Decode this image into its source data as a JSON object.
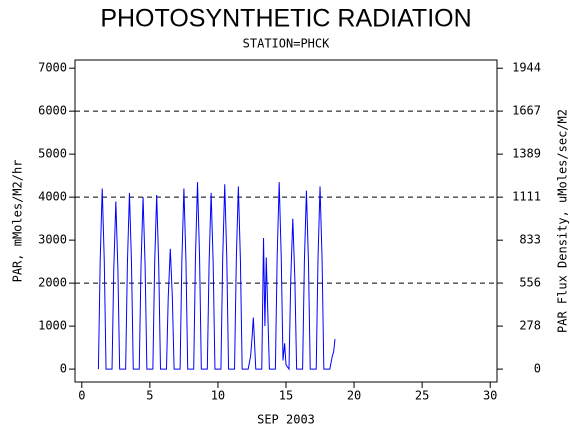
{
  "chart_data": {
    "type": "line",
    "title": "PHOTOSYNTHETIC RADIATION",
    "subtitle": "STATION=PHCK",
    "x_label": "SEP 2003",
    "y_label": "PAR, mMoles/M2/hr",
    "y2_label": "PAR Flux Density, uMoles/sec/M2",
    "xlim": [
      -0.5,
      30.5
    ],
    "xticks": [
      0,
      5,
      10,
      15,
      20,
      25,
      30
    ],
    "ylim": [
      -300,
      7190
    ],
    "yticks": [
      0,
      1000,
      2000,
      3000,
      4000,
      5000,
      6000,
      7000
    ],
    "y2lim": [
      -83.3,
      1997.2
    ],
    "y2ticks": [
      0,
      278,
      556,
      833,
      1111,
      1389,
      1667,
      1944
    ],
    "grid_lines": [
      2000,
      4000,
      6000
    ],
    "series": [
      {
        "color": "#0000ff",
        "x": [
          1.22,
          1.35,
          1.5,
          1.65,
          1.78,
          2.22,
          2.35,
          2.5,
          2.65,
          2.78,
          3.22,
          3.35,
          3.5,
          3.65,
          3.78,
          4.22,
          4.35,
          4.5,
          4.65,
          4.78,
          5.22,
          5.35,
          5.5,
          5.65,
          5.78,
          6.22,
          6.35,
          6.5,
          6.65,
          6.78,
          7.22,
          7.35,
          7.5,
          7.65,
          7.78,
          8.22,
          8.35,
          8.5,
          8.65,
          8.78,
          9.22,
          9.35,
          9.5,
          9.65,
          9.78,
          10.22,
          10.35,
          10.5,
          10.65,
          10.78,
          11.22,
          11.35,
          11.5,
          11.65,
          11.78,
          12.22,
          12.4,
          12.5,
          12.6,
          12.78,
          13.22,
          13.35,
          13.45,
          13.55,
          13.78,
          14.22,
          14.35,
          14.5,
          14.65,
          14.78,
          14.9,
          15.0,
          15.22,
          15.35,
          15.5,
          15.65,
          15.78,
          16.22,
          16.35,
          16.5,
          16.65,
          16.78,
          17.22,
          17.35,
          17.5,
          17.65,
          17.78,
          18.22,
          18.4,
          18.5,
          18.6
        ],
        "values": [
          0,
          2520,
          4200,
          2520,
          0,
          0,
          2340,
          3900,
          2340,
          0,
          0,
          2460,
          4100,
          2460,
          0,
          0,
          2400,
          4000,
          2400,
          0,
          0,
          2430,
          4050,
          2430,
          0,
          0,
          1680,
          2800,
          1680,
          0,
          0,
          2520,
          4200,
          2520,
          0,
          0,
          2610,
          4350,
          2610,
          0,
          0,
          2460,
          4100,
          2460,
          0,
          0,
          2580,
          4300,
          2580,
          0,
          0,
          2550,
          4250,
          2550,
          0,
          0,
          300,
          700,
          1200,
          0,
          0,
          3050,
          1000,
          2600,
          0,
          0,
          2600,
          4350,
          2600,
          200,
          600,
          100,
          0,
          2100,
          3500,
          2100,
          0,
          0,
          2490,
          4150,
          2490,
          0,
          0,
          2550,
          4250,
          2550,
          0,
          0,
          300,
          400,
          700
        ]
      }
    ]
  }
}
